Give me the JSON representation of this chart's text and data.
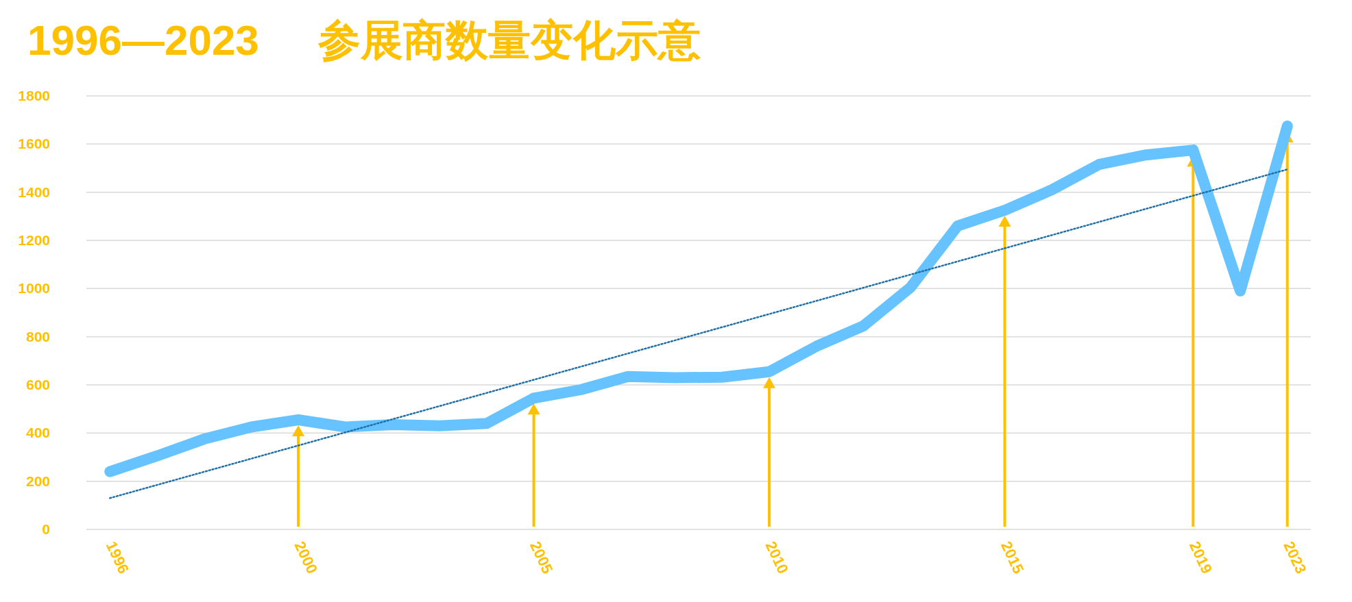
{
  "chart_data": {
    "type": "line",
    "title": "1996—2023     参展商数量变化示意",
    "categories": [
      "1996",
      null,
      null,
      null,
      "2000",
      null,
      null,
      null,
      null,
      "2005",
      null,
      null,
      null,
      null,
      "2010",
      null,
      null,
      null,
      null,
      "2015",
      null,
      null,
      null,
      "2019",
      null,
      "2023"
    ],
    "series": [
      {
        "color": "#66c3ff",
        "values": [
          240,
          305,
          375,
          425,
          455,
          425,
          435,
          430,
          440,
          545,
          580,
          635,
          630,
          632,
          655,
          760,
          845,
          1005,
          1260,
          1325,
          1410,
          1515,
          1555,
          1575,
          990,
          1675
        ]
      },
      {
        "color": "#1f6fa8",
        "line_style": "dotted",
        "values": [
          130,
          null,
          null,
          null,
          null,
          null,
          null,
          null,
          null,
          null,
          null,
          null,
          null,
          null,
          null,
          null,
          null,
          null,
          null,
          null,
          null,
          null,
          null,
          null,
          null,
          1495
        ]
      }
    ],
    "ylim": [
      0,
      1800
    ],
    "yticks": [
      0,
      200,
      400,
      600,
      800,
      1000,
      1200,
      1400,
      1600,
      1800
    ],
    "grid": "y"
  }
}
